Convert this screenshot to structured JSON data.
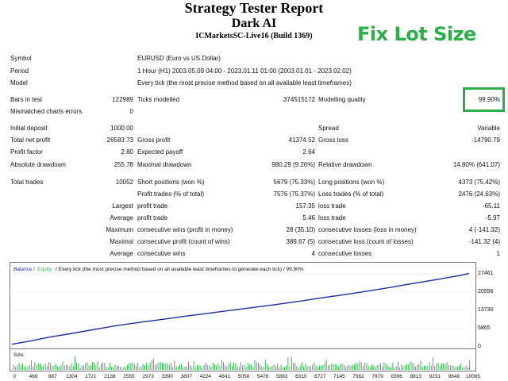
{
  "header": {
    "title": "Strategy Tester Report",
    "subtitle": "Dark AI",
    "server": "ICMarketsSC-Live16 (Build 1369)",
    "badge": "Fix Lot Size"
  },
  "info": {
    "symbol_label": "Symbol",
    "symbol_value": "EURUSD (Euro vs US Dollar)",
    "period_label": "Period",
    "period_value": "1 Hour (H1) 2003.05.09 04:00 - 2023.01.11 01:00 (2003.01.01 - 2023.02.02)",
    "model_label": "Model",
    "model_value": "Every tick (the most precise method based on all available least timeframes)"
  },
  "stats": {
    "bars_label": "Bars in test",
    "bars_value": "122989",
    "ticks_label": "Ticks modelled",
    "ticks_value": "374515172",
    "mq_label": "Modelling quality",
    "mq_value": "99.90%",
    "mismatch_label": "Mismatched charts errors",
    "mismatch_value": "0",
    "deposit_label": "Initial deposit",
    "deposit_value": "1000.00",
    "spread_label": "Spread",
    "spread_value": "Variable",
    "netprofit_label": "Total net profit",
    "netprofit_value": "26583.73",
    "grossprofit_label": "Gross profit",
    "grossprofit_value": "41374.52",
    "grossloss_label": "Gross loss",
    "grossloss_value": "-14790.79",
    "pf_label": "Profit factor",
    "pf_value": "2.80",
    "ep_label": "Expected payoff",
    "ep_value": "2.64",
    "absdd_label": "Absolute drawdown",
    "absdd_value": "255.78",
    "maxdd_label": "Maximal drawdown",
    "maxdd_value": "980.29 (9.26%)",
    "reldd_label": "Relative drawdown",
    "reldd_value": "14.80% (641.07)",
    "trades_label": "Total trades",
    "trades_value": "10052",
    "short_label": "Short positions (won %)",
    "short_value": "5679 (75.33%)",
    "long_label": "Long positions (won %)",
    "long_value": "4373 (75.42%)",
    "profit_trades_label": "Profit trades (% of total)",
    "profit_trades_value": "7576 (75.37%)",
    "loss_trades_label": "Loss trades (% of total)",
    "loss_trades_value": "2476 (24.63%)",
    "largest_label": "Largest",
    "largest_profit_label": "profit trade",
    "largest_profit_value": "157.35",
    "largest_loss_label": "loss trade",
    "largest_loss_value": "-65.11",
    "average_label": "Average",
    "average_profit_label": "profit trade",
    "average_profit_value": "5.46",
    "average_loss_label": "loss trade",
    "average_loss_value": "-5.97",
    "maximum_label": "Maximum",
    "max_wins_label": "consecutive wins (profit in money)",
    "max_wins_value": "28 (35.10)",
    "max_losses_label": "consecutive losses (loss in money)",
    "max_losses_value": "4 (-141.32)",
    "maximal_label": "Maximal",
    "maximal_profit_label": "consecutive profit (count of wins)",
    "maximal_profit_value": "389.67 (5)",
    "maximal_loss_label": "consecutive loss (count of losses)",
    "maximal_loss_value": "-141.32 (4)",
    "avg2_label": "Average",
    "avg_wins_label": "consecutive wins",
    "avg_wins_value": "4",
    "avg_losses_label": "consecutive losses",
    "avg_losses_value": "1"
  },
  "chart_legend": {
    "balance": "Balance",
    "sep": "/",
    "equity": "Equity",
    "rest": "/ Every tick (the most precise method based on all available least timeframes to generate each tick) / 99.90%"
  },
  "size_label": "Size",
  "chart_data": {
    "type": "line",
    "title": "",
    "xlabel": "",
    "ylabel": "",
    "y_ticks": [
      "27461",
      "20596",
      "13730",
      "6865",
      "0"
    ],
    "x_ticks": [
      "0",
      "469",
      "887",
      "1304",
      "1721",
      "2138",
      "2555",
      "2973",
      "3390",
      "3807",
      "4224",
      "4641",
      "5058",
      "5476",
      "5893",
      "6310",
      "6727",
      "7145",
      "7562",
      "7979",
      "8396",
      "8813",
      "9231",
      "9648",
      "10065"
    ],
    "ylim": [
      0,
      27461
    ],
    "xlim": [
      0,
      10052
    ],
    "series": [
      {
        "name": "Balance",
        "color": "#1c2f9c",
        "x": [
          0,
          400,
          800,
          1300,
          1800,
          2300,
          2800,
          3300,
          3800,
          4300,
          4800,
          5300,
          5800,
          6300,
          6800,
          7300,
          7800,
          8300,
          8800,
          9300,
          9800,
          10052
        ],
        "y": [
          1000,
          2200,
          3600,
          5000,
          6500,
          8000,
          9200,
          10300,
          11500,
          12600,
          13700,
          14800,
          15900,
          17100,
          18400,
          19600,
          20900,
          22300,
          23800,
          25200,
          26700,
          27583
        ]
      }
    ],
    "colors": {
      "balance": "#1c2f9c",
      "equity": "#2fad4a",
      "size_bars": "#2fad4a"
    }
  }
}
